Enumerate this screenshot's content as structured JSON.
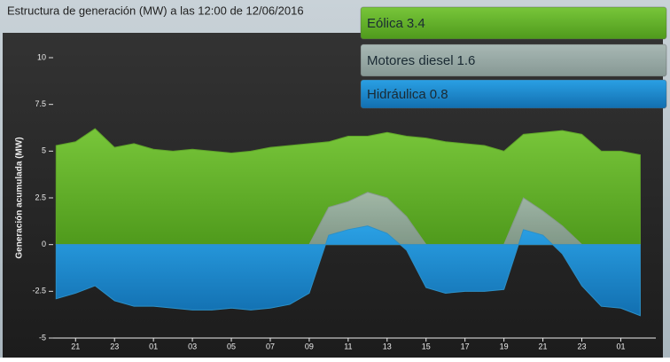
{
  "chart_data": {
    "type": "area",
    "title": "Estructura de generación (MW) a las 12:00 de 12/06/2016",
    "y_label": "Generación acumulada (MW)",
    "x": [
      20,
      21,
      22,
      23,
      24,
      25,
      26,
      27,
      28,
      29,
      30,
      31,
      32,
      33,
      34,
      35,
      36,
      37,
      38,
      39,
      40,
      41,
      42,
      43,
      44,
      45,
      46,
      47,
      48,
      49,
      50
    ],
    "series": [
      {
        "name": "Eólica",
        "current": 3.4,
        "color": "#5fa32a",
        "values": [
          5.3,
          5.5,
          6.2,
          5.2,
          5.4,
          5.1,
          5.0,
          5.1,
          5.0,
          4.9,
          5.0,
          5.2,
          5.3,
          5.4,
          5.5,
          5.8,
          5.8,
          6.0,
          5.8,
          5.7,
          5.5,
          5.4,
          5.3,
          5.0,
          5.9,
          6.0,
          6.1,
          5.9,
          5.0,
          5.0,
          4.8
        ]
      },
      {
        "name": "Motores diesel",
        "current": 1.6,
        "color": "#8a9896",
        "values": [
          0,
          0,
          0,
          0,
          0,
          0,
          0,
          0,
          0,
          0,
          0,
          0,
          0,
          0,
          2.0,
          2.3,
          2.8,
          2.5,
          1.5,
          0,
          0,
          0,
          0,
          0,
          2.5,
          1.8,
          1.0,
          0,
          0,
          0,
          0
        ]
      },
      {
        "name": "Hidráulica",
        "current": 0.8,
        "color": "#2b90c8",
        "values": [
          -2.9,
          -2.6,
          -2.2,
          -3.0,
          -3.3,
          -3.3,
          -3.4,
          -3.5,
          -3.5,
          -3.4,
          -3.5,
          -3.4,
          -3.2,
          -2.6,
          0.5,
          0.8,
          1.0,
          0.6,
          -0.3,
          -2.3,
          -2.6,
          -2.5,
          -2.5,
          -2.4,
          0.8,
          0.5,
          -0.5,
          -2.2,
          -3.3,
          -3.4,
          -3.8
        ]
      }
    ],
    "xlim": [
      19.85,
      50.8
    ],
    "xticks": [
      21,
      23,
      {
        "value": 25,
        "label": "01"
      },
      {
        "value": 27,
        "label": "03"
      },
      {
        "value": 29,
        "label": "05"
      },
      {
        "value": 31,
        "label": "07"
      },
      {
        "value": 33,
        "label": "09"
      },
      {
        "value": 35,
        "label": "11"
      },
      {
        "value": 37,
        "label": "13"
      },
      {
        "value": 39,
        "label": "15"
      },
      {
        "value": 41,
        "label": "17"
      },
      {
        "value": 43,
        "label": "19"
      },
      {
        "value": 45,
        "label": "21"
      },
      {
        "value": 47,
        "label": "23"
      },
      {
        "value": 49,
        "label": "01"
      }
    ],
    "ylim": [
      -5,
      10
    ],
    "yticks": [
      10,
      7.5,
      5,
      2.5,
      0,
      -2.5,
      -5
    ],
    "grid": false
  }
}
